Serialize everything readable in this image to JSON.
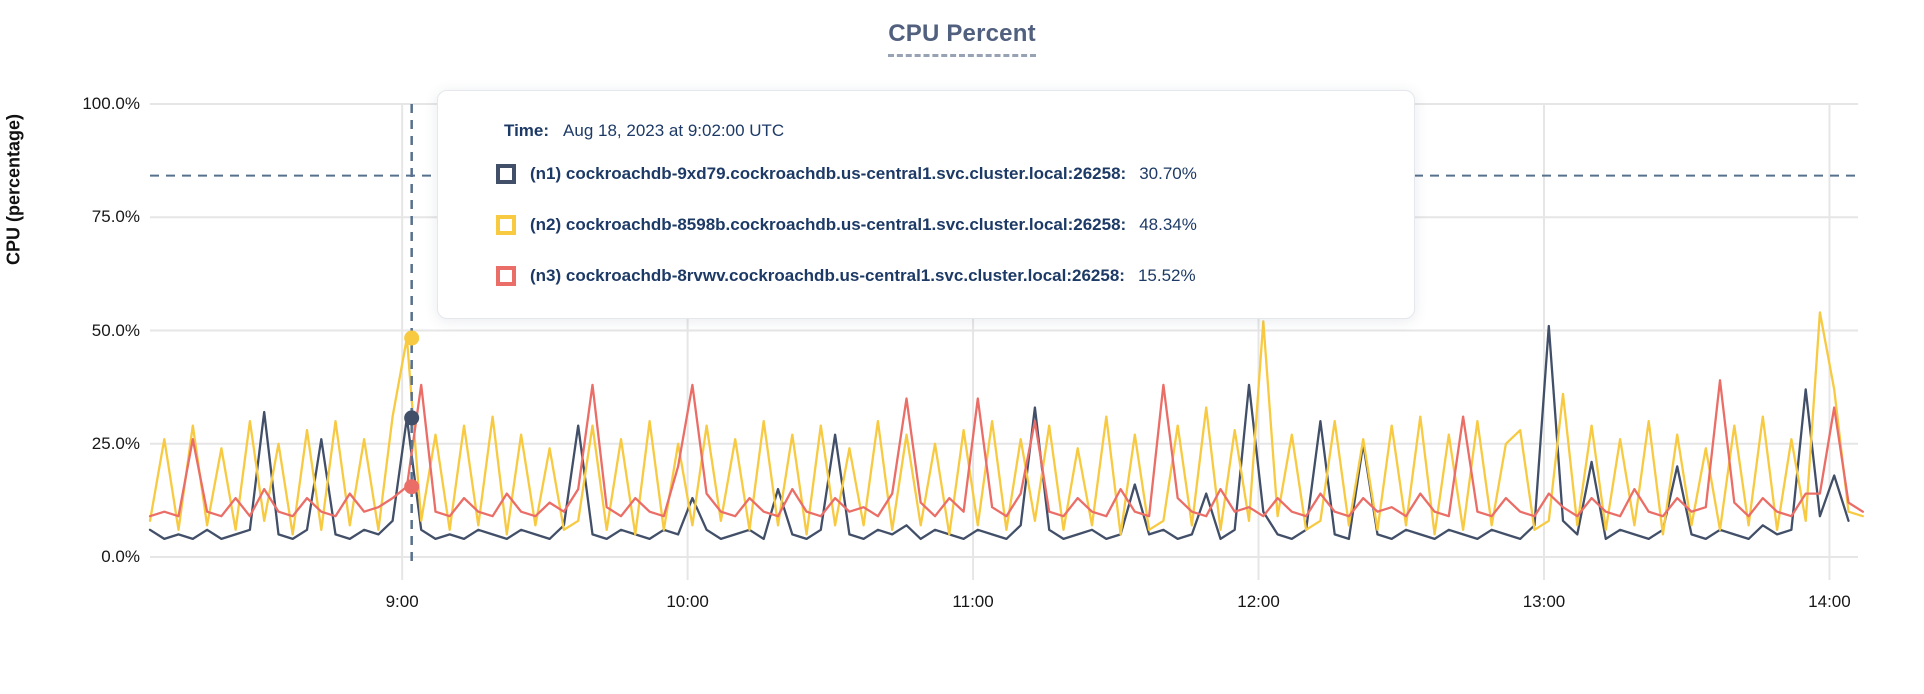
{
  "title": {
    "text": "CPU Percent"
  },
  "y_axis": {
    "label": "CPU (percentage)"
  },
  "tooltip": {
    "time_label": "Time:",
    "time_value": "Aug 18, 2023 at 9:02:00 UTC",
    "rows": [
      {
        "label": "(n1) cockroachdb-9xd79.cockroachdb.us-central1.svc.cluster.local:26258:",
        "value": "30.70%"
      },
      {
        "label": "(n2) cockroachdb-8598b.cockroachdb.us-central1.svc.cluster.local:26258:",
        "value": "48.34%"
      },
      {
        "label": "(n3) cockroachdb-8rvwv.cockroachdb.us-central1.svc.cluster.local:26258:",
        "value": "15.52%"
      }
    ]
  },
  "colors": {
    "series_n1": "#424f68",
    "series_n2": "#f7ca41",
    "series_n3": "#ea6e67",
    "grid": "#e6e6e6",
    "crosshair": "#56708d",
    "axis_text": "#171717",
    "title_text": "#51607f",
    "tooltip_text": "#1d3a66"
  },
  "chart_data": {
    "type": "line",
    "title": "CPU Percent",
    "xlabel": "",
    "ylabel": "CPU (percentage)",
    "ylim": [
      0,
      100
    ],
    "grid": true,
    "legend_position": "tooltip-overlay",
    "y_ticks": [
      {
        "value": 0,
        "label": "0.0%"
      },
      {
        "value": 25,
        "label": "25.0%"
      },
      {
        "value": 50,
        "label": "50.0%"
      },
      {
        "value": 75,
        "label": "75.0%"
      },
      {
        "value": 100,
        "label": "100.0%"
      }
    ],
    "x_domain_min": [
      487,
      846
    ],
    "x_ticks_min": [
      540,
      600,
      660,
      720,
      780,
      840
    ],
    "x_tick_labels": [
      "9:00",
      "10:00",
      "11:00",
      "12:00",
      "13:00",
      "14:00"
    ],
    "x_start_min": 487,
    "x_step_min": 3,
    "series": [
      {
        "name": "(n1) cockroachdb-9xd79.cockroachdb.us-central1.svc.cluster.local:26258",
        "color": "#424f68",
        "values": [
          6,
          4,
          5,
          4,
          6,
          4,
          5,
          6,
          32,
          5,
          4,
          6,
          26,
          5,
          4,
          6,
          5,
          8,
          30.7,
          6,
          4,
          5,
          4,
          6,
          5,
          4,
          6,
          5,
          4,
          7,
          29,
          5,
          4,
          6,
          5,
          4,
          6,
          5,
          13,
          6,
          4,
          5,
          6,
          4,
          15,
          5,
          4,
          6,
          27,
          5,
          4,
          6,
          5,
          7,
          4,
          6,
          5,
          4,
          6,
          5,
          4,
          7,
          33,
          6,
          4,
          5,
          6,
          4,
          5,
          16,
          5,
          6,
          4,
          5,
          14,
          4,
          6,
          38,
          10,
          5,
          4,
          6,
          30,
          5,
          4,
          25,
          5,
          4,
          6,
          5,
          4,
          6,
          5,
          4,
          6,
          5,
          4,
          7,
          51,
          8,
          5,
          21,
          4,
          6,
          5,
          4,
          6,
          20,
          5,
          4,
          6,
          5,
          4,
          7,
          5,
          6,
          37,
          9,
          18,
          8
        ]
      },
      {
        "name": "(n2) cockroachdb-8598b.cockroachdb.us-central1.svc.cluster.local:26258",
        "color": "#f7ca41",
        "values": [
          8,
          26,
          6,
          29,
          7,
          24,
          6,
          30,
          8,
          25,
          5,
          28,
          6,
          30,
          7,
          26,
          6,
          31,
          48.34,
          8,
          27,
          6,
          29,
          7,
          31,
          5,
          27,
          7,
          24,
          6,
          8,
          29,
          6,
          26,
          5,
          30,
          6,
          25,
          7,
          29,
          8,
          26,
          6,
          30,
          7,
          27,
          5,
          29,
          7,
          24,
          7,
          30,
          6,
          27,
          7,
          25,
          5,
          28,
          7,
          30,
          6,
          26,
          8,
          29,
          6,
          24,
          7,
          31,
          5,
          27,
          6,
          8,
          29,
          7,
          33,
          6,
          28,
          8,
          52,
          9,
          27,
          6,
          8,
          30,
          7,
          26,
          6,
          29,
          7,
          31,
          5,
          27,
          6,
          30,
          7,
          25,
          28,
          6,
          8,
          36,
          7,
          29,
          6,
          26,
          7,
          30,
          5,
          27,
          7,
          24,
          6,
          29,
          7,
          31,
          6,
          26,
          8,
          54,
          37,
          10,
          9
        ]
      },
      {
        "name": "(n3) cockroachdb-8rvwv.cockroachdb.us-central1.svc.cluster.local:26258",
        "color": "#ea6e67",
        "values": [
          9,
          10,
          9,
          26,
          10,
          9,
          13,
          9,
          15,
          10,
          9,
          13,
          10,
          9,
          14,
          10,
          11,
          13,
          15.52,
          38,
          10,
          9,
          13,
          10,
          9,
          14,
          10,
          9,
          12,
          10,
          15,
          38,
          11,
          9,
          13,
          10,
          9,
          20,
          38,
          14,
          10,
          9,
          13,
          10,
          9,
          15,
          10,
          9,
          13,
          10,
          11,
          9,
          14,
          35,
          12,
          9,
          13,
          10,
          35,
          11,
          9,
          14,
          30,
          10,
          9,
          13,
          10,
          9,
          15,
          10,
          9,
          38,
          13,
          10,
          9,
          15,
          10,
          11,
          9,
          13,
          10,
          9,
          14,
          10,
          9,
          13,
          10,
          11,
          9,
          14,
          10,
          9,
          31,
          10,
          9,
          13,
          10,
          9,
          14,
          11,
          9,
          13,
          10,
          9,
          15,
          10,
          9,
          13,
          10,
          11,
          39,
          12,
          9,
          13,
          10,
          9,
          14,
          14,
          33,
          12,
          10
        ]
      }
    ],
    "hover": {
      "time_min": 542,
      "time_label": "Aug 18, 2023 at 9:02:00 UTC",
      "cursor_y_pct": 84.2,
      "values": [
        30.7,
        48.34,
        15.52
      ]
    }
  }
}
